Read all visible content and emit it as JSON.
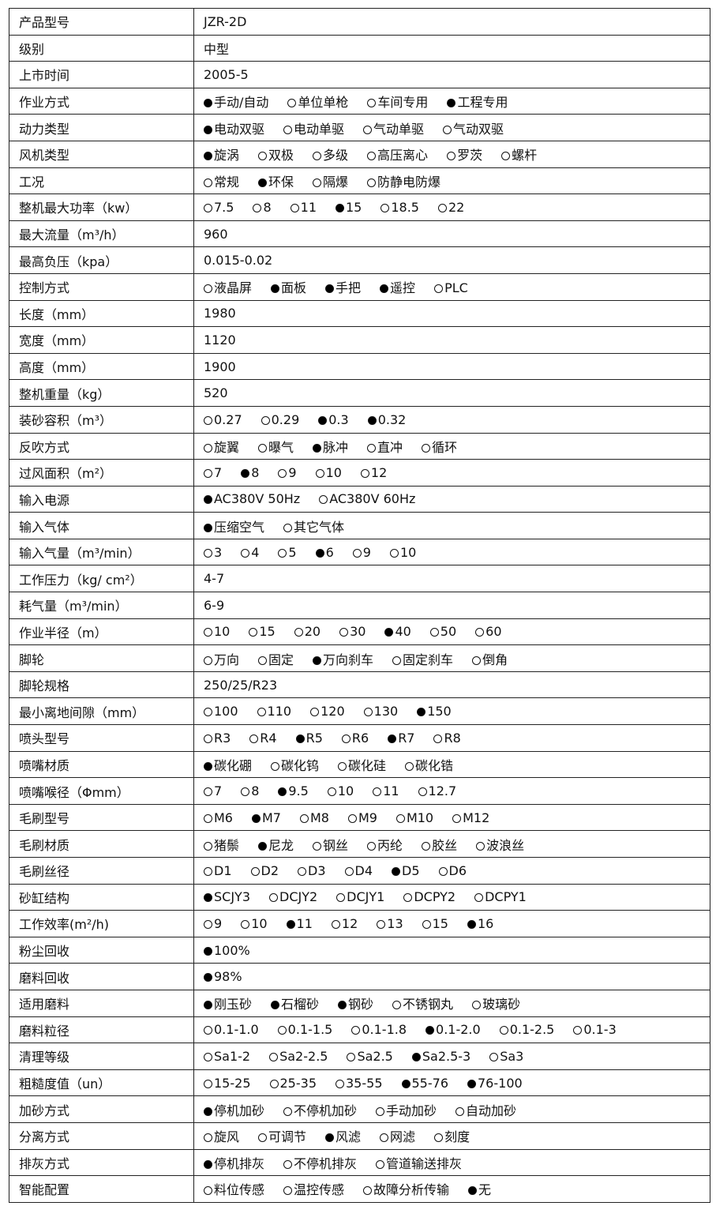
{
  "rows": [
    {
      "label": "产品型号",
      "value": "JZR-2D"
    },
    {
      "label": "级别",
      "value": "中型"
    },
    {
      "label": "上市时间",
      "value": "2005-5"
    },
    {
      "label": "作业方式",
      "options": [
        {
          "t": "手动/自动",
          "on": true
        },
        {
          "t": "单位单枪",
          "on": false
        },
        {
          "t": "车间专用",
          "on": false
        },
        {
          "t": "工程专用",
          "on": true
        }
      ]
    },
    {
      "label": "动力类型",
      "options": [
        {
          "t": "电动双驱",
          "on": true
        },
        {
          "t": "电动单驱",
          "on": false
        },
        {
          "t": "气动单驱",
          "on": false
        },
        {
          "t": "气动双驱",
          "on": false
        }
      ]
    },
    {
      "label": "风机类型",
      "options": [
        {
          "t": "旋涡",
          "on": true
        },
        {
          "t": "双极",
          "on": false
        },
        {
          "t": "多级",
          "on": false
        },
        {
          "t": "高压离心",
          "on": false
        },
        {
          "t": "罗茨",
          "on": false
        },
        {
          "t": "螺杆",
          "on": false
        }
      ]
    },
    {
      "label": "工况",
      "options": [
        {
          "t": "常规",
          "on": false
        },
        {
          "t": "环保",
          "on": true
        },
        {
          "t": "隔爆",
          "on": false
        },
        {
          "t": "防静电防爆",
          "on": false
        }
      ]
    },
    {
      "label": "整机最大功率（kw）",
      "options": [
        {
          "t": "7.5",
          "on": false
        },
        {
          "t": "8",
          "on": false
        },
        {
          "t": "11",
          "on": false
        },
        {
          "t": "15",
          "on": true
        },
        {
          "t": "18.5",
          "on": false
        },
        {
          "t": "22",
          "on": false
        }
      ]
    },
    {
      "label": "最大流量（m³/h）",
      "value": "960"
    },
    {
      "label": "最高负压（kpa）",
      "value": "0.015-0.02"
    },
    {
      "label": "控制方式",
      "options": [
        {
          "t": "液晶屏",
          "on": false
        },
        {
          "t": "面板",
          "on": true
        },
        {
          "t": "手把",
          "on": true
        },
        {
          "t": "遥控",
          "on": true
        },
        {
          "t": "PLC",
          "on": false
        }
      ]
    },
    {
      "label": "长度（mm）",
      "value": "1980"
    },
    {
      "label": "宽度（mm）",
      "value": "1120"
    },
    {
      "label": "高度（mm）",
      "value": "1900"
    },
    {
      "label": "整机重量（kg）",
      "value": "520"
    },
    {
      "label": "装砂容积（m³）",
      "options": [
        {
          "t": "0.27",
          "on": false
        },
        {
          "t": "0.29",
          "on": false
        },
        {
          "t": "0.3",
          "on": true
        },
        {
          "t": "0.32",
          "on": true
        }
      ]
    },
    {
      "label": "反吹方式",
      "options": [
        {
          "t": "旋翼",
          "on": false
        },
        {
          "t": "曝气",
          "on": false
        },
        {
          "t": "脉冲",
          "on": true
        },
        {
          "t": "直冲",
          "on": false
        },
        {
          "t": "循环",
          "on": false
        }
      ]
    },
    {
      "label": "过风面积（m²）",
      "options": [
        {
          "t": "7",
          "on": false
        },
        {
          "t": "8",
          "on": true
        },
        {
          "t": "9",
          "on": false
        },
        {
          "t": "10",
          "on": false
        },
        {
          "t": "12",
          "on": false
        }
      ]
    },
    {
      "label": "输入电源",
      "options": [
        {
          "t": "AC380V   50Hz",
          "on": true
        },
        {
          "t": "AC380V   60Hz",
          "on": false
        }
      ]
    },
    {
      "label": "输入气体",
      "options": [
        {
          "t": "压缩空气",
          "on": true
        },
        {
          "t": "其它气体",
          "on": false
        }
      ]
    },
    {
      "label": "输入气量（m³/min）",
      "options": [
        {
          "t": "3",
          "on": false
        },
        {
          "t": "4",
          "on": false
        },
        {
          "t": "5",
          "on": false
        },
        {
          "t": "6",
          "on": true
        },
        {
          "t": "9",
          "on": false
        },
        {
          "t": "10",
          "on": false
        }
      ]
    },
    {
      "label": "工作压力（kg/ cm²）",
      "value": "4-7"
    },
    {
      "label": "耗气量（m³/min）",
      "value": "6-9"
    },
    {
      "label": "作业半径（m）",
      "options": [
        {
          "t": "10",
          "on": false
        },
        {
          "t": "15",
          "on": false
        },
        {
          "t": "20",
          "on": false
        },
        {
          "t": "30",
          "on": false
        },
        {
          "t": "40",
          "on": true
        },
        {
          "t": "50",
          "on": false
        },
        {
          "t": "60",
          "on": false
        }
      ]
    },
    {
      "label": "脚轮",
      "options": [
        {
          "t": "万向",
          "on": false
        },
        {
          "t": "固定",
          "on": false
        },
        {
          "t": "万向刹车",
          "on": true
        },
        {
          "t": "固定刹车",
          "on": false
        },
        {
          "t": "倒角",
          "on": false
        }
      ]
    },
    {
      "label": "脚轮规格",
      "value": "250/25/R23"
    },
    {
      "label": "最小离地间隙（mm）",
      "options": [
        {
          "t": "100",
          "on": false
        },
        {
          "t": "110",
          "on": false
        },
        {
          "t": "120",
          "on": false
        },
        {
          "t": "130",
          "on": false
        },
        {
          "t": "150",
          "on": true
        }
      ]
    },
    {
      "label": "喷头型号",
      "options": [
        {
          "t": "R3",
          "on": false
        },
        {
          "t": "R4",
          "on": false
        },
        {
          "t": "R5",
          "on": true
        },
        {
          "t": "R6",
          "on": false
        },
        {
          "t": "R7",
          "on": true
        },
        {
          "t": "R8",
          "on": false
        }
      ]
    },
    {
      "label": "喷嘴材质",
      "options": [
        {
          "t": "碳化硼",
          "on": true
        },
        {
          "t": "碳化钨",
          "on": false
        },
        {
          "t": "碳化硅",
          "on": false
        },
        {
          "t": "碳化锆",
          "on": false
        }
      ]
    },
    {
      "label": "喷嘴喉径（Φmm）",
      "options": [
        {
          "t": "7",
          "on": false
        },
        {
          "t": "8",
          "on": false
        },
        {
          "t": "9.5",
          "on": true
        },
        {
          "t": "10",
          "on": false
        },
        {
          "t": "11",
          "on": false
        },
        {
          "t": "12.7",
          "on": false
        }
      ]
    },
    {
      "label": "毛刷型号",
      "options": [
        {
          "t": "M6",
          "on": false
        },
        {
          "t": "M7",
          "on": true
        },
        {
          "t": "M8",
          "on": false
        },
        {
          "t": "M9",
          "on": false
        },
        {
          "t": "M10",
          "on": false
        },
        {
          "t": "M12",
          "on": false
        }
      ]
    },
    {
      "label": "毛刷材质",
      "options": [
        {
          "t": "猪鬃",
          "on": false
        },
        {
          "t": "尼龙",
          "on": true
        },
        {
          "t": "钢丝",
          "on": false
        },
        {
          "t": "丙纶",
          "on": false
        },
        {
          "t": "胶丝",
          "on": false
        },
        {
          "t": "波浪丝",
          "on": false
        }
      ]
    },
    {
      "label": "毛刷丝径",
      "options": [
        {
          "t": "D1",
          "on": false
        },
        {
          "t": "D2",
          "on": false
        },
        {
          "t": "D3",
          "on": false
        },
        {
          "t": "D4",
          "on": false
        },
        {
          "t": "D5",
          "on": true
        },
        {
          "t": "D6",
          "on": false
        }
      ]
    },
    {
      "label": "砂缸结构",
      "options": [
        {
          "t": "SCJY3",
          "on": true
        },
        {
          "t": "DCJY2",
          "on": false
        },
        {
          "t": "DCJY1",
          "on": false
        },
        {
          "t": "DCPY2",
          "on": false
        },
        {
          "t": "DCPY1",
          "on": false
        }
      ]
    },
    {
      "label": "工作效率(m²/h)",
      "options": [
        {
          "t": "9",
          "on": false
        },
        {
          "t": "10",
          "on": false
        },
        {
          "t": "11",
          "on": true
        },
        {
          "t": "12",
          "on": false
        },
        {
          "t": "13",
          "on": false
        },
        {
          "t": "15",
          "on": false
        },
        {
          "t": "16",
          "on": true
        }
      ]
    },
    {
      "label": "粉尘回收",
      "options": [
        {
          "t": "100%",
          "on": true
        }
      ]
    },
    {
      "label": "磨料回收",
      "options": [
        {
          "t": "98%",
          "on": true
        }
      ]
    },
    {
      "label": "适用磨料",
      "options": [
        {
          "t": "刚玉砂",
          "on": true
        },
        {
          "t": "石榴砂",
          "on": true
        },
        {
          "t": "钢砂",
          "on": true
        },
        {
          "t": "不锈钢丸",
          "on": false
        },
        {
          "t": "玻璃砂",
          "on": false
        }
      ]
    },
    {
      "label": "磨料粒径",
      "options": [
        {
          "t": "0.1-1.0",
          "on": false
        },
        {
          "t": "0.1-1.5",
          "on": false
        },
        {
          "t": "0.1-1.8",
          "on": false
        },
        {
          "t": "0.1-2.0",
          "on": true
        },
        {
          "t": "0.1-2.5",
          "on": false
        },
        {
          "t": "0.1-3",
          "on": false
        }
      ]
    },
    {
      "label": "清理等级",
      "options": [
        {
          "t": "Sa1-2",
          "on": false
        },
        {
          "t": "Sa2-2.5",
          "on": false
        },
        {
          "t": "Sa2.5",
          "on": false
        },
        {
          "t": "Sa2.5-3",
          "on": true
        },
        {
          "t": "Sa3",
          "on": false
        }
      ]
    },
    {
      "label": "粗糙度值（un）",
      "options": [
        {
          "t": "15-25",
          "on": false
        },
        {
          "t": "25-35",
          "on": false
        },
        {
          "t": "35-55",
          "on": false
        },
        {
          "t": "55-76",
          "on": true
        },
        {
          "t": "76-100",
          "on": true
        }
      ]
    },
    {
      "label": "加砂方式",
      "options": [
        {
          "t": "停机加砂",
          "on": true
        },
        {
          "t": "不停机加砂",
          "on": false
        },
        {
          "t": "手动加砂",
          "on": false
        },
        {
          "t": "自动加砂",
          "on": false
        }
      ]
    },
    {
      "label": "分离方式",
      "options": [
        {
          "t": "旋风",
          "on": false
        },
        {
          "t": "可调节",
          "on": false
        },
        {
          "t": "风滤",
          "on": true
        },
        {
          "t": "网滤",
          "on": false
        },
        {
          "t": "刻度",
          "on": false
        }
      ]
    },
    {
      "label": "排灰方式",
      "options": [
        {
          "t": "停机排灰",
          "on": true
        },
        {
          "t": "不停机排灰",
          "on": false
        },
        {
          "t": "管道输送排灰",
          "on": false
        }
      ]
    },
    {
      "label": "智能配置",
      "options": [
        {
          "t": "料位传感",
          "on": false
        },
        {
          "t": "温控传感",
          "on": false
        },
        {
          "t": "故障分析传输",
          "on": false
        },
        {
          "t": "无",
          "on": true
        }
      ]
    }
  ]
}
